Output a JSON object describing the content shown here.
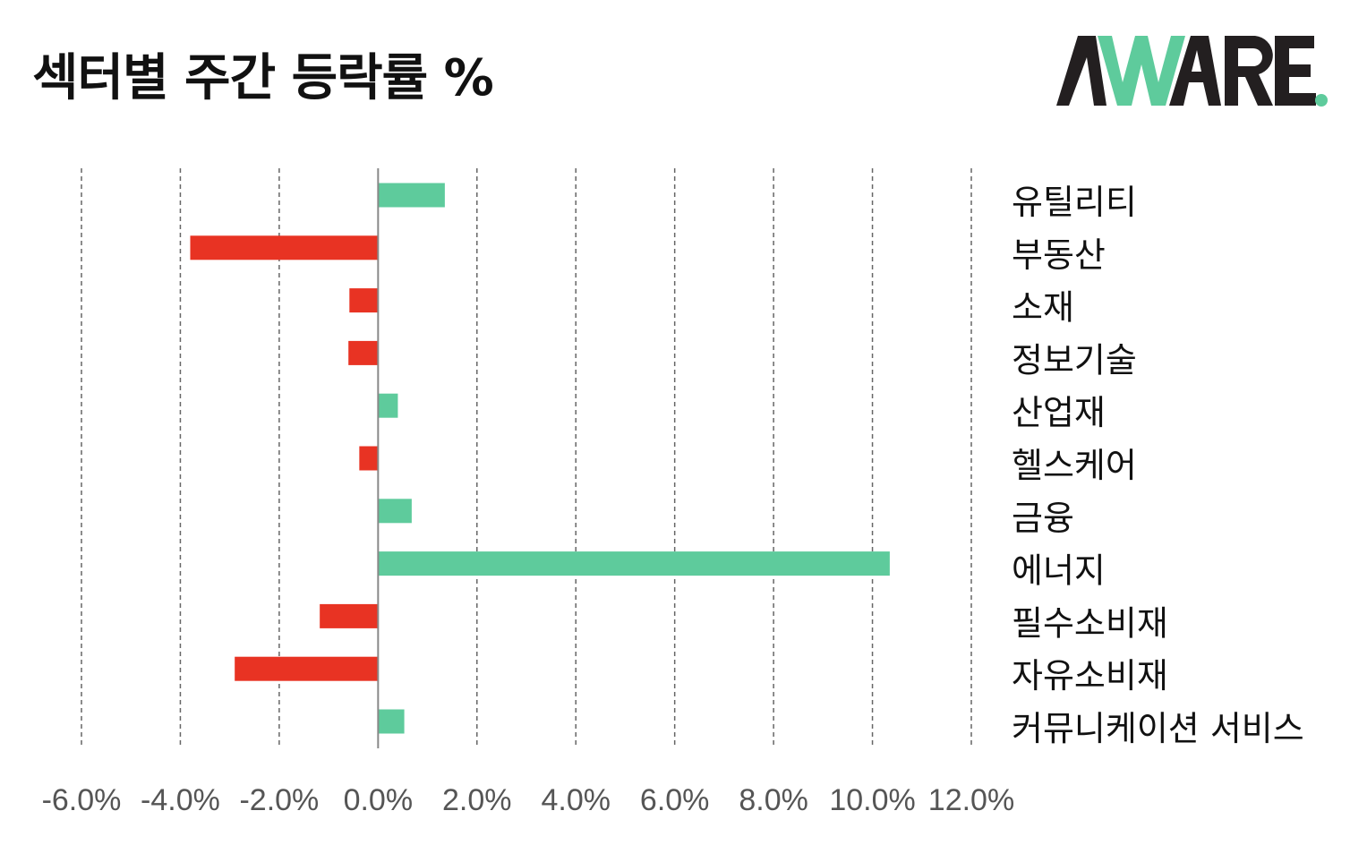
{
  "header": {
    "title": "섹터별 주간 등락률 %"
  },
  "logo": {
    "text": "AWARE."
  },
  "colors": {
    "positive": "#5ECB9C",
    "negative": "#E83323",
    "grid": "#666666",
    "axis": "#888888",
    "logo_dark": "#231F20",
    "logo_accent": "#5ECB9C"
  },
  "chart_data": {
    "type": "bar",
    "orientation": "horizontal",
    "title": "섹터별 주간 등락률 %",
    "xlabel": "",
    "ylabel": "",
    "xlim": [
      -6.0,
      12.0
    ],
    "ticks": [
      -6.0,
      -4.0,
      -2.0,
      0.0,
      2.0,
      4.0,
      6.0,
      8.0,
      10.0,
      12.0
    ],
    "tick_labels": [
      "-6.0%",
      "-4.0%",
      "-2.0%",
      "0.0%",
      "2.0%",
      "4.0%",
      "6.0%",
      "8.0%",
      "10.0%",
      "12.0%"
    ],
    "grid": true,
    "legend": "none",
    "categories": [
      "유틸리티",
      "부동산",
      "소재",
      "정보기술",
      "산업재",
      "헬스케어",
      "금융",
      "에너지",
      "필수소비재",
      "자유소비재",
      "커뮤니케이션 서비스"
    ],
    "values": [
      1.35,
      -3.8,
      -0.58,
      -0.6,
      0.4,
      -0.38,
      0.68,
      10.35,
      -1.18,
      -2.9,
      0.53
    ]
  }
}
